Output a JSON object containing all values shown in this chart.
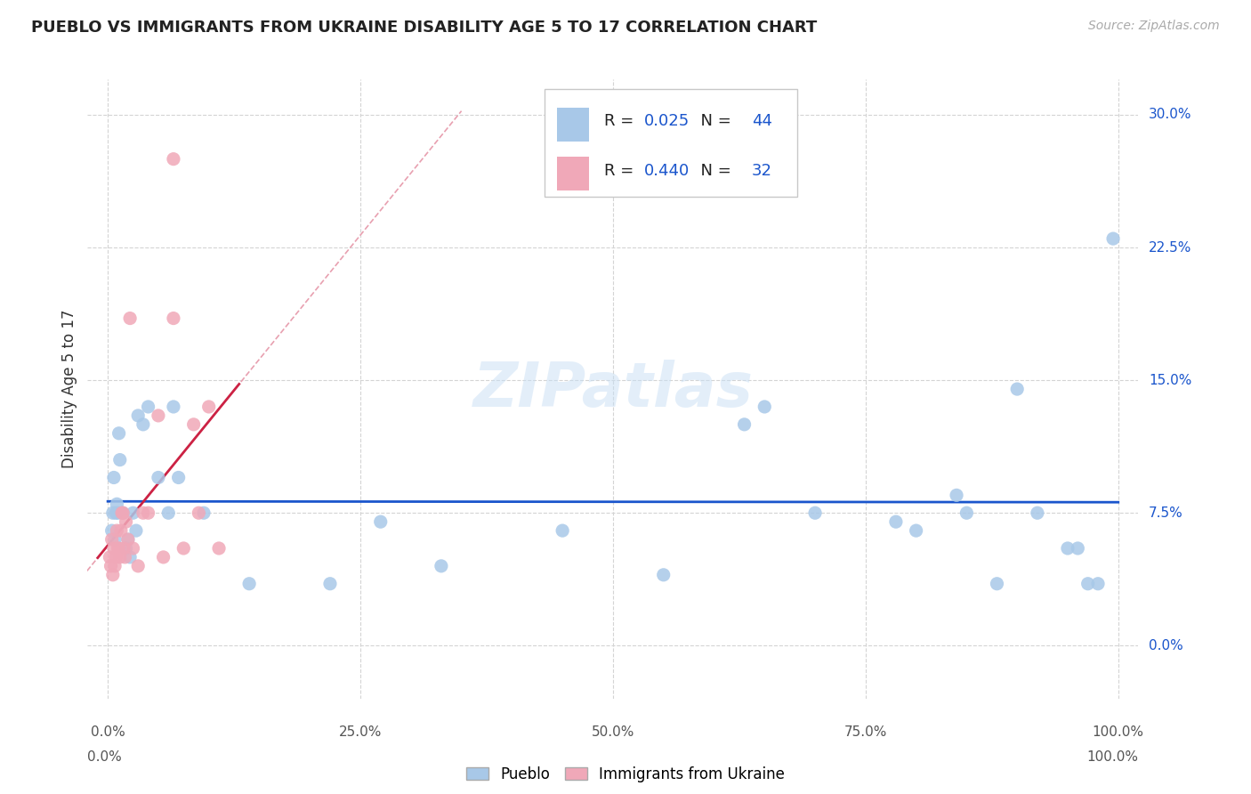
{
  "title": "PUEBLO VS IMMIGRANTS FROM UKRAINE DISABILITY AGE 5 TO 17 CORRELATION CHART",
  "source": "Source: ZipAtlas.com",
  "ylabel": "Disability Age 5 to 17",
  "pueblo_R": 0.025,
  "pueblo_N": 44,
  "ukraine_R": 0.44,
  "ukraine_N": 32,
  "pueblo_color": "#a8c8e8",
  "ukraine_color": "#f0a8b8",
  "pueblo_line_color": "#1a55cc",
  "ukraine_line_color": "#cc2244",
  "watermark": "ZIPatlas",
  "pueblo_x": [
    0.4,
    0.5,
    0.6,
    0.7,
    0.8,
    0.9,
    1.0,
    1.1,
    1.2,
    1.5,
    1.8,
    2.0,
    2.2,
    2.5,
    2.8,
    3.0,
    3.5,
    4.0,
    5.0,
    6.0,
    6.5,
    7.0,
    9.5,
    14.0,
    22.0,
    27.0,
    33.0,
    45.0,
    55.0,
    63.0,
    65.0,
    70.0,
    78.0,
    80.0,
    84.0,
    85.0,
    88.0,
    90.0,
    92.0,
    95.0,
    96.0,
    97.0,
    98.0,
    99.5
  ],
  "pueblo_y": [
    6.5,
    7.5,
    9.5,
    6.0,
    7.5,
    8.0,
    7.5,
    12.0,
    10.5,
    7.5,
    5.5,
    6.0,
    5.0,
    7.5,
    6.5,
    13.0,
    12.5,
    13.5,
    9.5,
    7.5,
    13.5,
    9.5,
    7.5,
    3.5,
    3.5,
    7.0,
    4.5,
    6.5,
    4.0,
    12.5,
    13.5,
    7.5,
    7.0,
    6.5,
    8.5,
    7.5,
    3.5,
    14.5,
    7.5,
    5.5,
    5.5,
    3.5,
    3.5,
    23.0
  ],
  "ukraine_x": [
    0.2,
    0.3,
    0.4,
    0.5,
    0.6,
    0.7,
    0.8,
    0.9,
    1.0,
    1.1,
    1.2,
    1.3,
    1.4,
    1.5,
    1.6,
    1.7,
    1.8,
    2.0,
    2.2,
    2.5,
    3.0,
    3.5,
    4.0,
    5.0,
    5.5,
    6.5,
    6.5,
    7.5,
    8.5,
    9.0,
    10.0,
    11.0
  ],
  "ukraine_y": [
    5.0,
    4.5,
    6.0,
    4.0,
    5.5,
    4.5,
    5.0,
    6.5,
    5.5,
    5.5,
    5.0,
    6.5,
    7.5,
    7.5,
    5.5,
    5.0,
    7.0,
    6.0,
    18.5,
    5.5,
    4.5,
    7.5,
    7.5,
    13.0,
    5.0,
    27.5,
    18.5,
    5.5,
    12.5,
    7.5,
    13.5,
    5.5
  ]
}
